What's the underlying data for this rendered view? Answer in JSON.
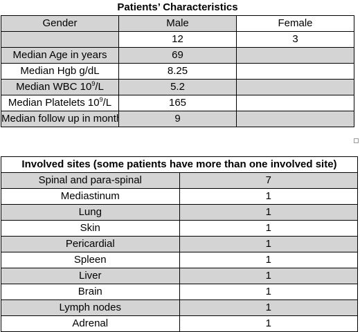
{
  "table1": {
    "title": "Patients’ Characteristics",
    "rows": [
      [
        "Gender",
        "Male",
        "Female"
      ],
      [
        "",
        "12",
        "3"
      ],
      [
        "Median Age in years",
        "69",
        ""
      ],
      [
        "Median Hgb g/dL",
        "8.25",
        ""
      ],
      [
        "Median WBC 10",
        "5.2",
        ""
      ],
      [
        "Median Platelets 10",
        "165",
        ""
      ],
      [
        "Median follow up in months",
        "9",
        ""
      ]
    ],
    "superscript": "9",
    "suffix": "/L"
  },
  "table2": {
    "title": "Involved sites (some patients have more than one involved site)",
    "rows": [
      [
        "Spinal and para-spinal",
        "7"
      ],
      [
        "Mediastinum",
        "1"
      ],
      [
        "Lung",
        "1"
      ],
      [
        "Skin",
        "1"
      ],
      [
        "Pericardial",
        "1"
      ],
      [
        "Spleen",
        "1"
      ],
      [
        "Liver",
        "1"
      ],
      [
        "Brain",
        "1"
      ],
      [
        "Lymph nodes",
        "1"
      ],
      [
        "Adrenal",
        "1"
      ]
    ]
  },
  "colors": {
    "shade": "#d4d4d4",
    "border": "#000000"
  }
}
